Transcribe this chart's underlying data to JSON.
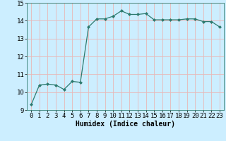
{
  "x": [
    0,
    1,
    2,
    3,
    4,
    5,
    6,
    7,
    8,
    9,
    10,
    11,
    12,
    13,
    14,
    15,
    16,
    17,
    18,
    19,
    20,
    21,
    22,
    23
  ],
  "y": [
    9.3,
    10.4,
    10.45,
    10.4,
    10.15,
    10.6,
    10.55,
    13.65,
    14.1,
    14.1,
    14.25,
    14.55,
    14.35,
    14.35,
    14.4,
    14.05,
    14.05,
    14.05,
    14.05,
    14.1,
    14.1,
    13.95,
    13.95,
    13.65
  ],
  "line_color": "#2d7a6e",
  "marker": "D",
  "marker_size": 2.0,
  "bg_color": "#cceeff",
  "grid_color": "#e8b8b8",
  "xlabel": "Humidex (Indice chaleur)",
  "ylim": [
    9,
    15
  ],
  "xlim": [
    -0.5,
    23.5
  ],
  "yticks": [
    9,
    10,
    11,
    12,
    13,
    14,
    15
  ],
  "xticks": [
    0,
    1,
    2,
    3,
    4,
    5,
    6,
    7,
    8,
    9,
    10,
    11,
    12,
    13,
    14,
    15,
    16,
    17,
    18,
    19,
    20,
    21,
    22,
    23
  ],
  "xlabel_fontsize": 7,
  "tick_fontsize": 6.5
}
